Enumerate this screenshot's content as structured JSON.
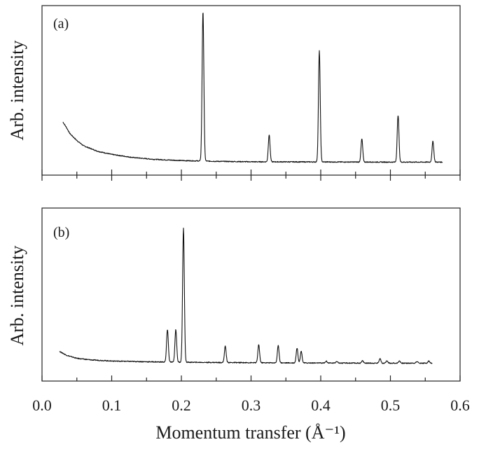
{
  "chart_data": [
    {
      "type": "line",
      "panel_label": "(a)",
      "ylabel": "Arb. intensity",
      "xlim": [
        0.0,
        0.6
      ],
      "ylim": [
        0,
        1.0
      ],
      "y_ticks_shown": false,
      "x_tick_labels_shown": false,
      "background": {
        "x": [
          0.03,
          0.035,
          0.04,
          0.05,
          0.06,
          0.08,
          0.1,
          0.13,
          0.16,
          0.2,
          0.25,
          0.3,
          0.4,
          0.5,
          0.575
        ],
        "y": [
          0.29,
          0.255,
          0.215,
          0.17,
          0.135,
          0.1,
          0.08,
          0.06,
          0.048,
          0.04,
          0.035,
          0.032,
          0.031,
          0.03,
          0.03
        ]
      },
      "peaks": [
        {
          "x": 0.231,
          "height": 0.97
        },
        {
          "x": 0.326,
          "height": 0.175
        },
        {
          "x": 0.398,
          "height": 0.72
        },
        {
          "x": 0.459,
          "height": 0.15
        },
        {
          "x": 0.511,
          "height": 0.305
        },
        {
          "x": 0.561,
          "height": 0.135
        }
      ]
    },
    {
      "type": "line",
      "panel_label": "(b)",
      "ylabel": "Arb. intensity",
      "xlabel": "Momentum transfer (Å⁻¹)",
      "xlim": [
        0.0,
        0.6
      ],
      "ylim": [
        0,
        1.0
      ],
      "x_ticks": [
        0.0,
        0.1,
        0.2,
        0.3,
        0.4,
        0.5,
        0.6
      ],
      "x_tick_labels": [
        "0.0",
        "0.1",
        "0.2",
        "0.3",
        "0.4",
        "0.5",
        "0.6"
      ],
      "y_ticks_shown": false,
      "background": {
        "x": [
          0.025,
          0.035,
          0.05,
          0.07,
          0.1,
          0.15,
          0.2,
          0.3,
          0.4,
          0.5,
          0.56
        ],
        "y": [
          0.11,
          0.085,
          0.065,
          0.055,
          0.048,
          0.043,
          0.04,
          0.037,
          0.035,
          0.034,
          0.034
        ]
      },
      "peaks": [
        {
          "x": 0.18,
          "height": 0.21
        },
        {
          "x": 0.192,
          "height": 0.21
        },
        {
          "x": 0.203,
          "height": 0.86
        },
        {
          "x": 0.263,
          "height": 0.105
        },
        {
          "x": 0.311,
          "height": 0.115
        },
        {
          "x": 0.339,
          "height": 0.11
        },
        {
          "x": 0.366,
          "height": 0.095
        },
        {
          "x": 0.372,
          "height": 0.075
        },
        {
          "x": 0.408,
          "height": 0.012
        },
        {
          "x": 0.423,
          "height": 0.012
        },
        {
          "x": 0.46,
          "height": 0.015
        },
        {
          "x": 0.485,
          "height": 0.03
        },
        {
          "x": 0.495,
          "height": 0.015
        },
        {
          "x": 0.513,
          "height": 0.015
        },
        {
          "x": 0.538,
          "height": 0.012
        },
        {
          "x": 0.555,
          "height": 0.014
        }
      ]
    }
  ]
}
